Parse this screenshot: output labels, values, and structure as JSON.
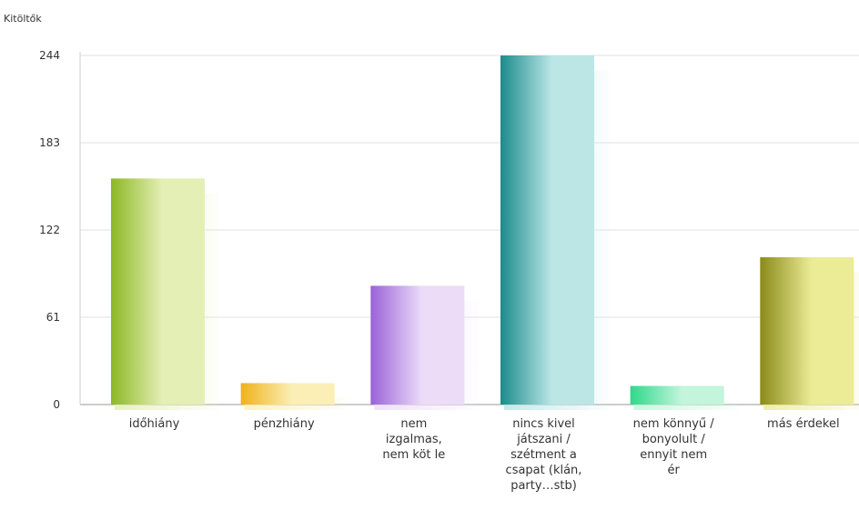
{
  "chart_data": {
    "type": "bar",
    "ylabel": "Kitöltők",
    "yticks": [
      "0",
      "61",
      "122",
      "183",
      "244"
    ],
    "ylim": [
      0,
      244
    ],
    "grid": true,
    "categories": [
      [
        "időhiány"
      ],
      [
        "pénzhiány"
      ],
      [
        "nem",
        "izgalmas,",
        "nem köt le"
      ],
      [
        "nincs kivel",
        "játszani /",
        "szétment a",
        "csapat (klán,",
        "party…stb)"
      ],
      [
        "nem könnyű /",
        "bonyolult /",
        "ennyit nem",
        "ér"
      ],
      [
        "más érdekel"
      ]
    ],
    "values": [
      158,
      15,
      83,
      244,
      13,
      103
    ],
    "colors": [
      [
        "#8cb824",
        "#e4efb5"
      ],
      [
        "#f0b21c",
        "#fbefb6"
      ],
      [
        "#9a62d8",
        "#ecdcf8"
      ],
      [
        "#1a8c8c",
        "#bce6e6"
      ],
      [
        "#2ed88a",
        "#c2f5db"
      ],
      [
        "#8a8a1a",
        "#ecec96"
      ]
    ]
  }
}
